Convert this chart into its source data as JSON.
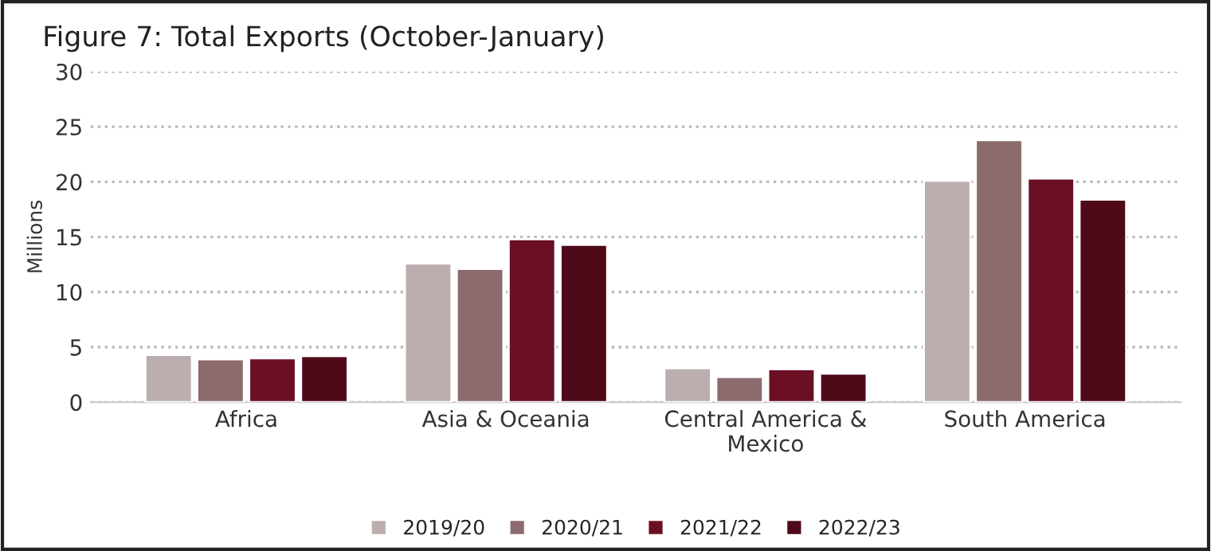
{
  "chart_data": {
    "type": "bar",
    "title": "Figure 7: Total Exports (October-January)",
    "ylabel": "Millions",
    "categories": [
      "Africa",
      "Asia & Oceania",
      "Central America &\nMexico",
      "South America"
    ],
    "series": [
      {
        "name": "2019/20",
        "color": "#bcaeae",
        "values": [
          4.3,
          12.6,
          3.1,
          20.1
        ]
      },
      {
        "name": "2020/21",
        "color": "#8c6b6e",
        "values": [
          3.9,
          12.1,
          2.3,
          23.8
        ]
      },
      {
        "name": "2021/22",
        "color": "#6b0f24",
        "values": [
          4.0,
          14.8,
          3.0,
          20.3
        ]
      },
      {
        "name": "2022/23",
        "color": "#4f0a1a",
        "values": [
          4.2,
          14.3,
          2.6,
          18.4
        ]
      }
    ],
    "ylim": [
      0,
      30
    ],
    "yticks": [
      0,
      5,
      10,
      15,
      20,
      25,
      30
    ],
    "grid": "y",
    "legend": "bottom"
  }
}
